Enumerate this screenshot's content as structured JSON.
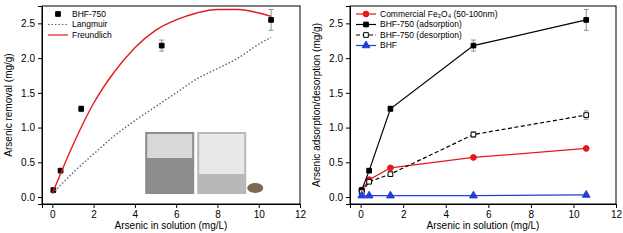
{
  "chart_data": [
    {
      "type": "scatter",
      "x_label": "Arsenic in solution (mg/L)",
      "y_label": "Arsenic removal (mg/g)",
      "x": [
        0.05,
        0.4,
        1.4,
        5.3,
        10.6
      ],
      "xlim": [
        -0.5,
        12
      ],
      "xticks": [
        0,
        2,
        4,
        6,
        8,
        10,
        12
      ],
      "ylim": [
        -0.1,
        2.75
      ],
      "yticks": [
        {
          "value": 0,
          "label": "0.0"
        },
        0.5,
        {
          "value": 1,
          "label": "1.0"
        },
        1.5,
        {
          "value": 2,
          "label": "2.0"
        },
        2.5
      ],
      "legend": "upper left",
      "series": [
        {
          "name": "BHF-750",
          "color": "#000000",
          "marker": "square",
          "values": [
            0.1,
            0.38,
            1.27,
            2.18,
            2.55
          ],
          "error": [
            0.02,
            0.02,
            0.04,
            0.08,
            0.15
          ]
        },
        {
          "name": "Langmuir",
          "color": "#666666",
          "line_style": "dotted",
          "x": [
            0,
            1,
            2,
            3,
            4,
            5,
            6,
            7,
            8,
            9,
            10,
            10.6
          ],
          "values": [
            0.05,
            0.35,
            0.62,
            0.88,
            1.1,
            1.3,
            1.5,
            1.7,
            1.85,
            2.0,
            2.2,
            2.3
          ]
        },
        {
          "name": "Freundlich",
          "color": "#e41a1c",
          "line_style": "solid",
          "x": [
            0,
            1,
            2,
            3,
            4,
            5,
            6,
            7,
            8,
            9,
            10,
            10.6
          ],
          "values": [
            0.05,
            0.75,
            1.35,
            1.8,
            2.15,
            2.4,
            2.55,
            2.65,
            2.7,
            2.7,
            2.65,
            2.6
          ]
        }
      ]
    },
    {
      "type": "scatter",
      "x_label": "Arsenic in solution (mg/L)",
      "y_label": "Arsenic adsorption/desorption (mg/g)",
      "x": [
        0.05,
        0.4,
        1.4,
        5.3,
        10.6
      ],
      "xlim": [
        -0.5,
        12
      ],
      "xticks": [
        0,
        2,
        4,
        6,
        8,
        10,
        12
      ],
      "ylim": [
        -0.1,
        2.75
      ],
      "yticks": [
        {
          "value": 0,
          "label": "0.0"
        },
        0.5,
        {
          "value": 1,
          "label": "1.0"
        },
        1.5,
        {
          "value": 2,
          "label": "2.0"
        },
        2.5
      ],
      "legend": "upper left",
      "series": [
        {
          "name": "Commercial Fe₃O₄ (50-100nm)",
          "color": "#e41a1c",
          "marker": "circle",
          "line_style": "solid",
          "values": [
            0.1,
            0.25,
            0.42,
            0.57,
            0.7
          ]
        },
        {
          "name": "BHF-750 (adsorption)",
          "color": "#000000",
          "marker": "square",
          "line_style": "solid",
          "values": [
            0.1,
            0.38,
            1.27,
            2.18,
            2.55
          ],
          "error": [
            0.02,
            0.02,
            0.04,
            0.08,
            0.15
          ]
        },
        {
          "name": "BHF-750 (desorption)",
          "color": "#000000",
          "marker": "open-square",
          "line_style": "dashed",
          "values": [
            0.07,
            0.22,
            0.33,
            0.9,
            1.18
          ],
          "error": [
            0.01,
            0.02,
            0.03,
            0.04,
            0.06
          ]
        },
        {
          "name": "BHF",
          "color": "#1f3fd8",
          "marker": "triangle",
          "line_style": "solid",
          "values": [
            0.02,
            0.02,
            0.02,
            0.02,
            0.03
          ]
        }
      ]
    }
  ]
}
